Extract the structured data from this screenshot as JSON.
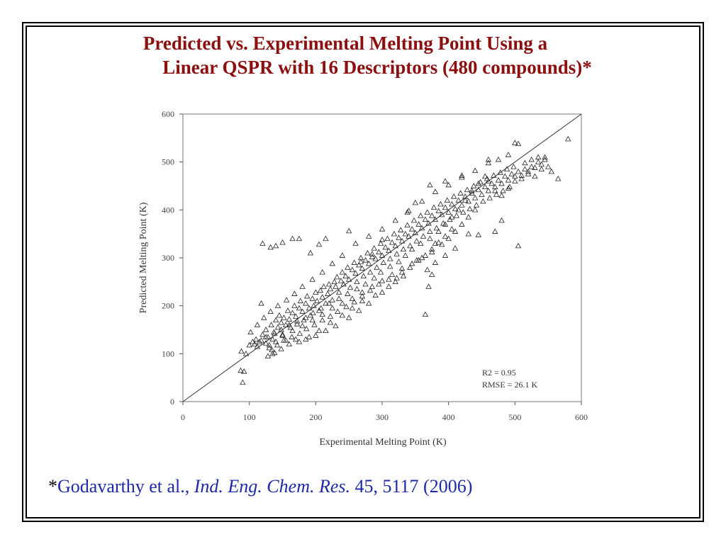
{
  "slide": {
    "title_line1": "Predicted vs. Experimental Melting Point Using a",
    "title_line2": "Linear QSPR with 16 Descriptors (480 compounds)*",
    "citation": {
      "star": "*",
      "authors": "Godavarthy et al., ",
      "journal": "Ind. Eng. Chem. Res.",
      "details": " 45, 5117 (2006)"
    },
    "colors": {
      "title": "#8b0f0f",
      "citation": "#1d2aa8"
    }
  },
  "chart_data": {
    "type": "scatter",
    "xlabel": "Experimental Melting Point (K)",
    "ylabel": "Predicted Melting Point (K)",
    "xlim": [
      0,
      600
    ],
    "ylim": [
      0,
      600
    ],
    "xticks": [
      "0",
      "100",
      "200",
      "300",
      "400",
      "500",
      "600"
    ],
    "yticks": [
      "0",
      "100",
      "200",
      "300",
      "400",
      "500",
      "600"
    ],
    "marker": "triangle",
    "grid": false,
    "reference_line": "y = x",
    "annotations": [
      "R2 = 0.95",
      "RMSE = 26.1 K"
    ],
    "points": [
      [
        87,
        65
      ],
      [
        90,
        40
      ],
      [
        92,
        63
      ],
      [
        95,
        100
      ],
      [
        88,
        105
      ],
      [
        100,
        118
      ],
      [
        105,
        125
      ],
      [
        110,
        130
      ],
      [
        112,
        115
      ],
      [
        118,
        128
      ],
      [
        120,
        140
      ],
      [
        118,
        205
      ],
      [
        125,
        150
      ],
      [
        128,
        135
      ],
      [
        130,
        118
      ],
      [
        133,
        160
      ],
      [
        135,
        100
      ],
      [
        137,
        145
      ],
      [
        140,
        170
      ],
      [
        143,
        155
      ],
      [
        145,
        180
      ],
      [
        148,
        165
      ],
      [
        150,
        140
      ],
      [
        152,
        175
      ],
      [
        155,
        160
      ],
      [
        158,
        190
      ],
      [
        160,
        172
      ],
      [
        162,
        155
      ],
      [
        165,
        185
      ],
      [
        168,
        200
      ],
      [
        170,
        178
      ],
      [
        172,
        162
      ],
      [
        175,
        195
      ],
      [
        177,
        210
      ],
      [
        180,
        188
      ],
      [
        182,
        170
      ],
      [
        185,
        205
      ],
      [
        187,
        220
      ],
      [
        190,
        195
      ],
      [
        192,
        180
      ],
      [
        195,
        215
      ],
      [
        197,
        200
      ],
      [
        200,
        228
      ],
      [
        202,
        210
      ],
      [
        205,
        190
      ],
      [
        207,
        232
      ],
      [
        210,
        218
      ],
      [
        212,
        240
      ],
      [
        215,
        205
      ],
      [
        218,
        225
      ],
      [
        220,
        245
      ],
      [
        222,
        235
      ],
      [
        225,
        212
      ],
      [
        228,
        250
      ],
      [
        230,
        240
      ],
      [
        232,
        260
      ],
      [
        235,
        228
      ],
      [
        238,
        252
      ],
      [
        240,
        270
      ],
      [
        242,
        245
      ],
      [
        245,
        262
      ],
      [
        248,
        280
      ],
      [
        250,
        255
      ],
      [
        252,
        238
      ],
      [
        255,
        275
      ],
      [
        258,
        290
      ],
      [
        260,
        268
      ],
      [
        262,
        250
      ],
      [
        265,
        285
      ],
      [
        268,
        300
      ],
      [
        270,
        278
      ],
      [
        272,
        262
      ],
      [
        275,
        295
      ],
      [
        278,
        310
      ],
      [
        280,
        288
      ],
      [
        282,
        270
      ],
      [
        285,
        302
      ],
      [
        288,
        320
      ],
      [
        290,
        298
      ],
      [
        292,
        280
      ],
      [
        295,
        312
      ],
      [
        298,
        330
      ],
      [
        300,
        305
      ],
      [
        302,
        290
      ],
      [
        305,
        322
      ],
      [
        308,
        340
      ],
      [
        310,
        315
      ],
      [
        312,
        298
      ],
      [
        315,
        332
      ],
      [
        318,
        350
      ],
      [
        320,
        325
      ],
      [
        322,
        308
      ],
      [
        325,
        342
      ],
      [
        328,
        358
      ],
      [
        330,
        335
      ],
      [
        332,
        318
      ],
      [
        335,
        350
      ],
      [
        338,
        368
      ],
      [
        340,
        345
      ],
      [
        342,
        325
      ],
      [
        345,
        360
      ],
      [
        348,
        378
      ],
      [
        350,
        352
      ],
      [
        352,
        335
      ],
      [
        355,
        370
      ],
      [
        358,
        388
      ],
      [
        360,
        362
      ],
      [
        362,
        345
      ],
      [
        365,
        380
      ],
      [
        368,
        395
      ],
      [
        370,
        372
      ],
      [
        372,
        355
      ],
      [
        375,
        388
      ],
      [
        378,
        405
      ],
      [
        380,
        380
      ],
      [
        382,
        362
      ],
      [
        385,
        398
      ],
      [
        388,
        412
      ],
      [
        390,
        390
      ],
      [
        392,
        372
      ],
      [
        395,
        405
      ],
      [
        398,
        420
      ],
      [
        400,
        395
      ],
      [
        402,
        380
      ],
      [
        405,
        412
      ],
      [
        408,
        428
      ],
      [
        410,
        402
      ],
      [
        412,
        388
      ],
      [
        415,
        420
      ],
      [
        418,
        435
      ],
      [
        420,
        410
      ],
      [
        422,
        395
      ],
      [
        425,
        428
      ],
      [
        428,
        442
      ],
      [
        430,
        418
      ],
      [
        432,
        402
      ],
      [
        435,
        435
      ],
      [
        438,
        450
      ],
      [
        440,
        425
      ],
      [
        442,
        410
      ],
      [
        445,
        442
      ],
      [
        448,
        458
      ],
      [
        450,
        432
      ],
      [
        452,
        418
      ],
      [
        455,
        448
      ],
      [
        458,
        465
      ],
      [
        460,
        440
      ],
      [
        462,
        425
      ],
      [
        465,
        455
      ],
      [
        468,
        472
      ],
      [
        470,
        448
      ],
      [
        472,
        432
      ],
      [
        475,
        462
      ],
      [
        478,
        478
      ],
      [
        480,
        455
      ],
      [
        482,
        440
      ],
      [
        485,
        470
      ],
      [
        488,
        485
      ],
      [
        490,
        462
      ],
      [
        492,
        448
      ],
      [
        495,
        475
      ],
      [
        498,
        490
      ],
      [
        500,
        470
      ],
      [
        505,
        480
      ],
      [
        510,
        465
      ],
      [
        515,
        485
      ],
      [
        520,
        475
      ],
      [
        525,
        490
      ],
      [
        530,
        470
      ],
      [
        535,
        500
      ],
      [
        540,
        485
      ],
      [
        545,
        510
      ],
      [
        550,
        490
      ],
      [
        555,
        480
      ],
      [
        565,
        465
      ],
      [
        580,
        548
      ],
      [
        500,
        540
      ],
      [
        505,
        538
      ],
      [
        490,
        515
      ],
      [
        460,
        505
      ],
      [
        420,
        472
      ],
      [
        395,
        460
      ],
      [
        372,
        452
      ],
      [
        350,
        415
      ],
      [
        338,
        395
      ],
      [
        300,
        338
      ],
      [
        285,
        308
      ],
      [
        268,
        292
      ],
      [
        250,
        356
      ],
      [
        175,
        340
      ],
      [
        165,
        340
      ],
      [
        150,
        332
      ],
      [
        140,
        325
      ],
      [
        132,
        322
      ],
      [
        120,
        330
      ],
      [
        192,
        310
      ],
      [
        205,
        328
      ],
      [
        215,
        340
      ],
      [
        365,
        182
      ],
      [
        370,
        240
      ],
      [
        375,
        265
      ],
      [
        368,
        275
      ],
      [
        380,
        290
      ],
      [
        395,
        305
      ],
      [
        410,
        320
      ],
      [
        430,
        350
      ],
      [
        445,
        348
      ],
      [
        470,
        355
      ],
      [
        480,
        378
      ],
      [
        505,
        325
      ],
      [
        380,
        330
      ],
      [
        355,
        295
      ],
      [
        330,
        270
      ],
      [
        310,
        240
      ],
      [
        290,
        222
      ],
      [
        270,
        210
      ],
      [
        255,
        195
      ],
      [
        240,
        180
      ],
      [
        222,
        165
      ],
      [
        205,
        148
      ],
      [
        190,
        135
      ],
      [
        175,
        125
      ],
      [
        160,
        120
      ],
      [
        148,
        110
      ],
      [
        138,
        102
      ],
      [
        128,
        95
      ],
      [
        320,
        250
      ],
      [
        300,
        228
      ],
      [
        280,
        205
      ],
      [
        265,
        190
      ],
      [
        250,
        175
      ],
      [
        230,
        158
      ],
      [
        215,
        148
      ],
      [
        200,
        138
      ],
      [
        185,
        130
      ],
      [
        170,
        130
      ],
      [
        155,
        128
      ],
      [
        140,
        125
      ],
      [
        130,
        112
      ],
      [
        240,
        305
      ],
      [
        225,
        288
      ],
      [
        210,
        270
      ],
      [
        195,
        255
      ],
      [
        180,
        240
      ],
      [
        168,
        225
      ],
      [
        156,
        212
      ],
      [
        143,
        200
      ],
      [
        132,
        188
      ],
      [
        122,
        175
      ],
      [
        112,
        160
      ],
      [
        102,
        145
      ],
      [
        260,
        330
      ],
      [
        280,
        345
      ],
      [
        300,
        360
      ],
      [
        320,
        378
      ],
      [
        340,
        398
      ],
      [
        360,
        418
      ],
      [
        380,
        438
      ],
      [
        400,
        452
      ],
      [
        420,
        468
      ],
      [
        440,
        482
      ],
      [
        460,
        498
      ],
      [
        475,
        505
      ],
      [
        440,
        400
      ],
      [
        430,
        385
      ],
      [
        420,
        370
      ],
      [
        410,
        355
      ],
      [
        400,
        340
      ],
      [
        390,
        328
      ],
      [
        375,
        312
      ],
      [
        360,
        300
      ],
      [
        345,
        288
      ],
      [
        330,
        278
      ],
      [
        315,
        265
      ],
      [
        300,
        252
      ],
      [
        285,
        240
      ],
      [
        270,
        228
      ],
      [
        255,
        215
      ],
      [
        240,
        205
      ],
      [
        225,
        195
      ],
      [
        210,
        182
      ],
      [
        195,
        170
      ],
      [
        180,
        158
      ],
      [
        165,
        148
      ],
      [
        150,
        138
      ],
      [
        135,
        130
      ],
      [
        125,
        122
      ],
      [
        460,
        460
      ],
      [
        470,
        440
      ],
      [
        480,
        430
      ],
      [
        490,
        445
      ],
      [
        500,
        460
      ],
      [
        510,
        472
      ],
      [
        520,
        480
      ],
      [
        530,
        488
      ],
      [
        540,
        495
      ],
      [
        545,
        505
      ],
      [
        515,
        498
      ],
      [
        525,
        505
      ],
      [
        535,
        510
      ],
      [
        455,
        470
      ],
      [
        445,
        455
      ],
      [
        435,
        440
      ],
      [
        425,
        420
      ],
      [
        415,
        400
      ],
      [
        405,
        385
      ],
      [
        395,
        370
      ],
      [
        385,
        355
      ],
      [
        372,
        340
      ],
      [
        358,
        330
      ],
      [
        345,
        318
      ],
      [
        335,
        305
      ],
      [
        325,
        292
      ],
      [
        312,
        282
      ],
      [
        298,
        270
      ],
      [
        288,
        258
      ],
      [
        275,
        245
      ],
      [
        262,
        235
      ],
      [
        248,
        225
      ],
      [
        235,
        215
      ],
      [
        220,
        205
      ],
      [
        208,
        195
      ],
      [
        196,
        185
      ],
      [
        185,
        175
      ],
      [
        172,
        168
      ],
      [
        160,
        160
      ],
      [
        148,
        150
      ],
      [
        138,
        142
      ],
      [
        125,
        135
      ],
      [
        115,
        125
      ],
      [
        108,
        120
      ],
      [
        405,
        360
      ],
      [
        395,
        345
      ],
      [
        385,
        332
      ],
      [
        375,
        318
      ],
      [
        365,
        305
      ],
      [
        352,
        295
      ],
      [
        342,
        280
      ],
      [
        332,
        262
      ],
      [
        322,
        258
      ],
      [
        310,
        255
      ],
      [
        295,
        245
      ],
      [
        282,
        232
      ],
      [
        270,
        220
      ],
      [
        258,
        208
      ],
      [
        246,
        198
      ],
      [
        233,
        188
      ],
      [
        222,
        178
      ],
      [
        210,
        170
      ],
      [
        198,
        160
      ],
      [
        186,
        152
      ],
      [
        176,
        142
      ],
      [
        164,
        135
      ],
      [
        152,
        128
      ],
      [
        142,
        118
      ],
      [
        134,
        108
      ]
    ]
  }
}
